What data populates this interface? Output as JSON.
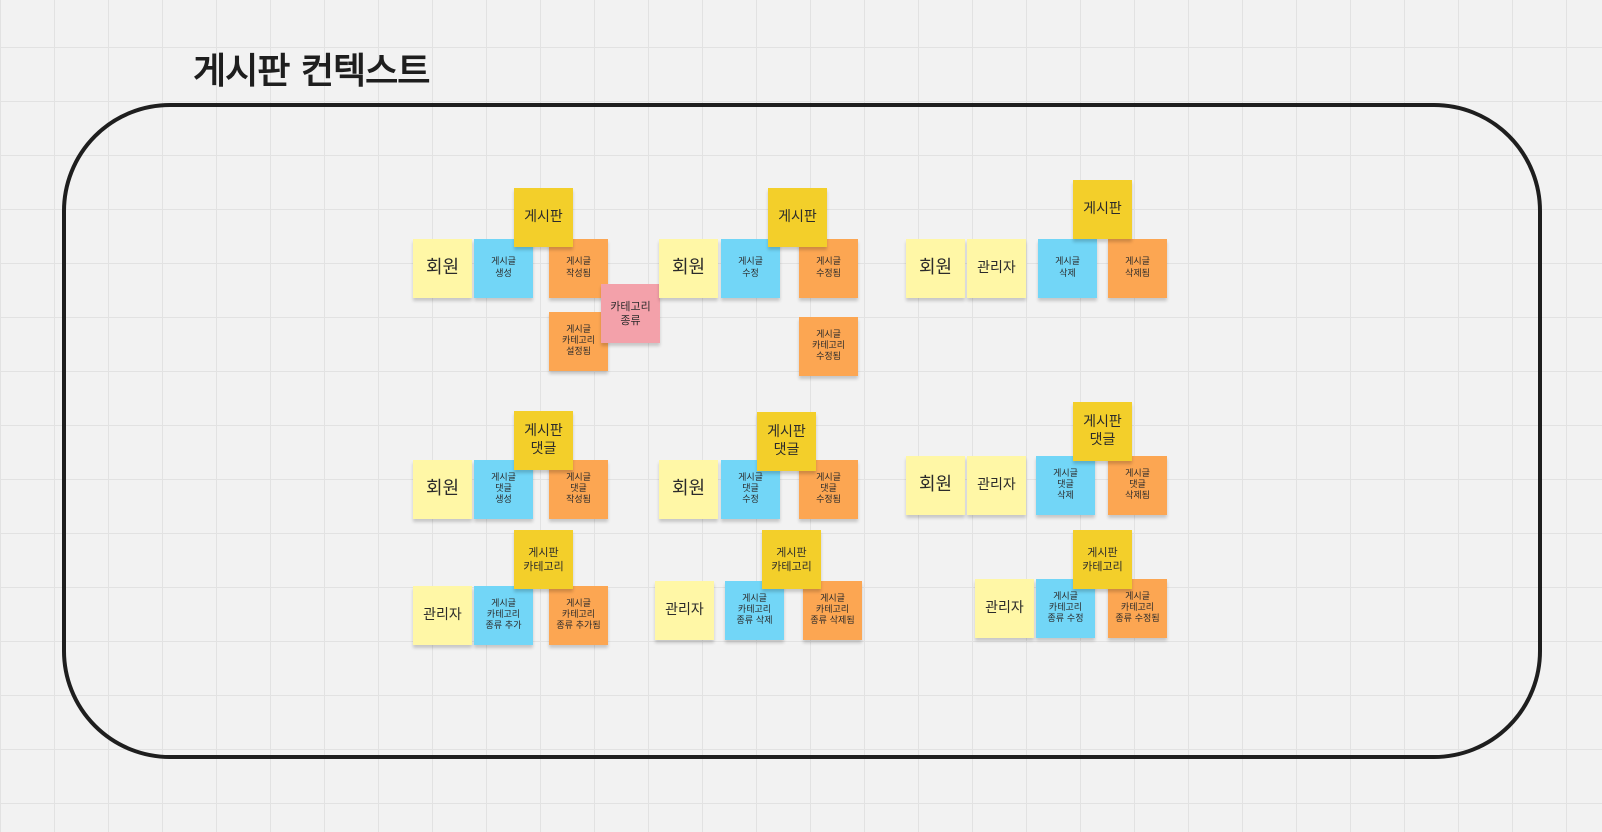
{
  "board": {
    "title": "게시판 컨텍스트"
  },
  "legend_colors": {
    "actor": "#fff7a6",
    "aggregate": "#f3cf2a",
    "command": "#72d6f7",
    "event": "#fca652",
    "policy": "#f3a1aa"
  },
  "stickies": [
    {
      "id": "agg-board-1",
      "kind": "aggregate",
      "text": "게시판"
    },
    {
      "id": "actor-member-1",
      "kind": "actor",
      "text": "회원"
    },
    {
      "id": "cmd-post-create",
      "kind": "command",
      "text": "게시글\n생성"
    },
    {
      "id": "evt-post-created",
      "kind": "event",
      "text": "게시글\n작성됨"
    },
    {
      "id": "policy-category-type",
      "kind": "policy",
      "text": "카테고리\n종류"
    },
    {
      "id": "evt-post-category-set",
      "kind": "event",
      "text": "게시글\n카테고리\n설정됨"
    },
    {
      "id": "agg-board-2",
      "kind": "aggregate",
      "text": "게시판"
    },
    {
      "id": "actor-member-2",
      "kind": "actor",
      "text": "회원"
    },
    {
      "id": "cmd-post-edit",
      "kind": "command",
      "text": "게시글\n수정"
    },
    {
      "id": "evt-post-edited",
      "kind": "event",
      "text": "게시글\n수정됨"
    },
    {
      "id": "evt-post-category-edited",
      "kind": "event",
      "text": "게시글\n카테고리\n수정됨"
    },
    {
      "id": "agg-board-3",
      "kind": "aggregate",
      "text": "게시판"
    },
    {
      "id": "actor-member-3",
      "kind": "actor",
      "text": "회원"
    },
    {
      "id": "actor-admin-3",
      "kind": "actor",
      "text": "관리자"
    },
    {
      "id": "cmd-post-delete",
      "kind": "command",
      "text": "게시글\n삭제"
    },
    {
      "id": "evt-post-deleted",
      "kind": "event",
      "text": "게시글\n삭제됨"
    },
    {
      "id": "agg-comment-1",
      "kind": "aggregate",
      "text": "게시판\n댓글"
    },
    {
      "id": "actor-member-4",
      "kind": "actor",
      "text": "회원"
    },
    {
      "id": "cmd-comment-create",
      "kind": "command",
      "text": "게시글\n댓글\n생성"
    },
    {
      "id": "evt-comment-created",
      "kind": "event",
      "text": "게시글\n댓글\n작성됨"
    },
    {
      "id": "agg-comment-2",
      "kind": "aggregate",
      "text": "게시판\n댓글"
    },
    {
      "id": "actor-member-5",
      "kind": "actor",
      "text": "회원"
    },
    {
      "id": "cmd-comment-edit",
      "kind": "command",
      "text": "게시글\n댓글\n수정"
    },
    {
      "id": "evt-comment-edited",
      "kind": "event",
      "text": "게시글\n댓글\n수정됨"
    },
    {
      "id": "agg-comment-3",
      "kind": "aggregate",
      "text": "게시판\n댓글"
    },
    {
      "id": "actor-member-6",
      "kind": "actor",
      "text": "회원"
    },
    {
      "id": "actor-admin-6",
      "kind": "actor",
      "text": "관리자"
    },
    {
      "id": "cmd-comment-delete",
      "kind": "command",
      "text": "게시글\n댓글\n삭제"
    },
    {
      "id": "evt-comment-deleted",
      "kind": "event",
      "text": "게시글\n댓글\n삭제됨"
    },
    {
      "id": "agg-category-1",
      "kind": "aggregate",
      "text": "게시판\n카테고리"
    },
    {
      "id": "actor-admin-7",
      "kind": "actor",
      "text": "관리자"
    },
    {
      "id": "cmd-category-add",
      "kind": "command",
      "text": "게시글\n카테고리\n종류 추가"
    },
    {
      "id": "evt-category-added",
      "kind": "event",
      "text": "게시글\n카테고리\n종류 추가됨"
    },
    {
      "id": "agg-category-2",
      "kind": "aggregate",
      "text": "게시판\n카테고리"
    },
    {
      "id": "actor-admin-8",
      "kind": "actor",
      "text": "관리자"
    },
    {
      "id": "cmd-category-delete",
      "kind": "command",
      "text": "게시글\n카테고리\n종류 삭제"
    },
    {
      "id": "evt-category-deleted",
      "kind": "event",
      "text": "게시글\n카테고리\n종류 삭제됨"
    },
    {
      "id": "agg-category-3",
      "kind": "aggregate",
      "text": "게시판\n카테고리"
    },
    {
      "id": "actor-admin-9",
      "kind": "actor",
      "text": "관리자"
    },
    {
      "id": "cmd-category-edit",
      "kind": "command",
      "text": "게시글\n카테고리\n종류 수정"
    },
    {
      "id": "evt-category-edited",
      "kind": "event",
      "text": "게시글\n카테고리\n종류 수정됨"
    }
  ]
}
